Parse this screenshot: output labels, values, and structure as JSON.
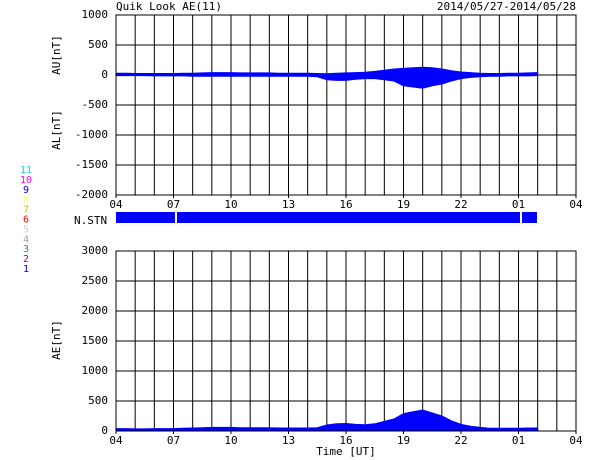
{
  "chart_data": [
    {
      "type": "area",
      "title": "Quik Look AE(11)",
      "subtitle": "2014/05/27-2014/05/28",
      "ylabels": [
        "AU[nT]",
        "AL[nT]"
      ],
      "x": [
        4,
        4.5,
        5,
        5.5,
        6,
        6.5,
        7,
        7.5,
        8,
        8.5,
        9,
        9.5,
        10,
        10.5,
        11,
        11.5,
        12,
        12.5,
        13,
        13.5,
        14,
        14.5,
        15,
        15.5,
        16,
        16.5,
        17,
        17.5,
        18,
        18.5,
        19,
        19.5,
        20,
        20.5,
        21,
        21.5,
        22,
        22.5,
        23,
        23.5,
        24,
        24.5,
        25,
        25.5,
        26
      ],
      "series": [
        {
          "color": "#0000ff",
          "values": [
            30,
            30,
            25,
            25,
            25,
            25,
            25,
            30,
            30,
            35,
            40,
            40,
            40,
            35,
            35,
            35,
            35,
            30,
            30,
            30,
            30,
            25,
            20,
            30,
            35,
            40,
            45,
            60,
            80,
            100,
            110,
            120,
            130,
            120,
            100,
            70,
            50,
            40,
            30,
            25,
            25,
            30,
            30,
            35,
            40
          ]
        },
        {
          "color": "#0000ff",
          "values": [
            -10,
            -10,
            -10,
            -10,
            -15,
            -15,
            -15,
            -15,
            -20,
            -20,
            -20,
            -20,
            -20,
            -20,
            -20,
            -20,
            -20,
            -20,
            -20,
            -20,
            -20,
            -30,
            -80,
            -90,
            -90,
            -70,
            -60,
            -60,
            -80,
            -100,
            -180,
            -200,
            -220,
            -180,
            -150,
            -100,
            -60,
            -40,
            -30,
            -20,
            -20,
            -15,
            -15,
            -15,
            -10
          ]
        }
      ],
      "xlim": [
        4,
        28
      ],
      "xticks": [
        {
          "value": 4,
          "label": "04"
        },
        {
          "value": 7,
          "label": "07"
        },
        10,
        13,
        16,
        19,
        22,
        {
          "value": 25,
          "label": "01"
        },
        {
          "value": 28,
          "label": "04"
        }
      ],
      "x_minor_step": 1,
      "ylim": [
        -2000,
        1000
      ],
      "yticks": [
        -2000,
        -1500,
        -1000,
        -500,
        0,
        500,
        1000
      ],
      "grid": true
    },
    {
      "type": "area",
      "ylabel": "AE[nT]",
      "xlabel": "Time [UT]",
      "x": [
        4,
        4.5,
        5,
        5.5,
        6,
        6.5,
        7,
        7.5,
        8,
        8.5,
        9,
        9.5,
        10,
        10.5,
        11,
        11.5,
        12,
        12.5,
        13,
        13.5,
        14,
        14.5,
        15,
        15.5,
        16,
        16.5,
        17,
        17.5,
        18,
        18.5,
        19,
        19.5,
        20,
        20.5,
        21,
        21.5,
        22,
        22.5,
        23,
        23.5,
        24,
        24.5,
        25,
        25.5,
        26
      ],
      "series": [
        {
          "color": "#0000ff",
          "values": [
            40,
            40,
            35,
            35,
            40,
            40,
            40,
            45,
            50,
            55,
            60,
            60,
            60,
            55,
            55,
            55,
            55,
            50,
            50,
            50,
            50,
            55,
            100,
            120,
            125,
            110,
            105,
            120,
            160,
            200,
            290,
            320,
            350,
            300,
            250,
            170,
            110,
            80,
            60,
            45,
            45,
            45,
            45,
            50,
            50
          ]
        }
      ],
      "xlim": [
        4,
        28
      ],
      "xticks": [
        {
          "value": 4,
          "label": "04"
        },
        {
          "value": 7,
          "label": "07"
        },
        10,
        13,
        16,
        19,
        22,
        {
          "value": 25,
          "label": "01"
        },
        {
          "value": 28,
          "label": "04"
        }
      ],
      "x_minor_step": 1,
      "ylim": [
        0,
        3000
      ],
      "yticks": [
        0,
        500,
        1000,
        1500,
        2000,
        2500,
        3000
      ],
      "grid": true
    }
  ],
  "station_panel": {
    "label": "N.STN"
  },
  "stations": [
    {
      "label": "11",
      "color": "#00e0e0"
    },
    {
      "label": "10",
      "color": "#ff00ff"
    },
    {
      "label": "9",
      "color": "#0000ff"
    },
    {
      "label": "8",
      "color": "#ffff60"
    },
    {
      "label": "7",
      "color": "#c0c000"
    },
    {
      "label": "6",
      "color": "#ff0000"
    },
    {
      "label": "5",
      "color": "#d0d0d0"
    },
    {
      "label": "4",
      "color": "#a0a0a0"
    },
    {
      "label": "3",
      "color": "#00a0a0"
    },
    {
      "label": "2",
      "color": "#a000a0"
    },
    {
      "label": "1",
      "color": "#0000a0"
    }
  ]
}
